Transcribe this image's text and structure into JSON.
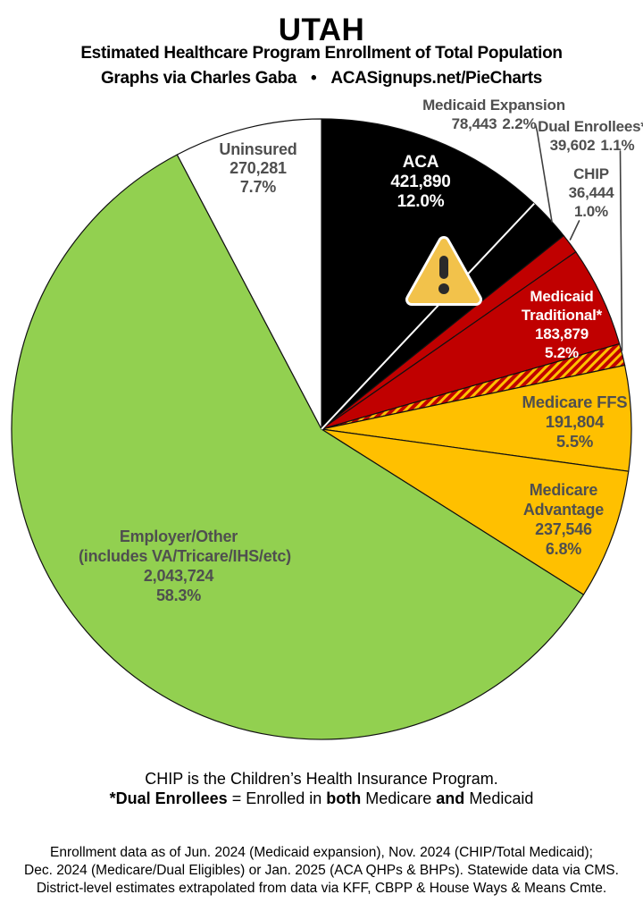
{
  "header": {
    "title": "UTAH",
    "subtitle": "Estimated Healthcare Program Enrollment of Total Population",
    "byline": {
      "left": "Graphs via Charles Gaba",
      "bullet": "•",
      "right": "ACASignups.net/PieCharts"
    }
  },
  "chart_data": {
    "type": "pie",
    "title": "UTAH",
    "subtitle": "Estimated Healthcare Program Enrollment of Total Population",
    "start_angle_deg": 0,
    "direction": "clockwise",
    "legend_position": "none",
    "slices": [
      {
        "id": "aca",
        "name": "ACA",
        "enrollment": 421890,
        "display_value": "421,890",
        "percent": 12.0,
        "percent_label": "12.0%",
        "color": "#000000",
        "label_color": "#ffffff"
      },
      {
        "id": "medicaid-expansion",
        "name": "Medicaid Expansion",
        "enrollment": 78443,
        "display_value": "78,443",
        "percent": 2.2,
        "percent_label": "2.2%",
        "color": "#000000",
        "label_color": "#4f4f4f"
      },
      {
        "id": "chip",
        "name": "CHIP",
        "enrollment": 36444,
        "display_value": "36,444",
        "percent": 1.0,
        "percent_label": "1.0%",
        "color": "#C00000",
        "label_color": "#4f4f4f"
      },
      {
        "id": "medicaid-traditional",
        "name": "Medicaid Traditional*",
        "enrollment": 183879,
        "display_value": "183,879",
        "percent": 5.2,
        "percent_label": "5.2%",
        "color": "#C00000",
        "label_color": "#ffffff"
      },
      {
        "id": "dual-enrollees",
        "name": "Dual Enrollees*",
        "enrollment": 39602,
        "display_value": "39,602",
        "percent": 1.1,
        "percent_label": "1.1%",
        "color": "#C00000",
        "pattern": "diagonal-stripes",
        "pattern_colors": [
          "#C00000",
          "#FFC000"
        ],
        "label_color": "#4f4f4f"
      },
      {
        "id": "medicare-ffs",
        "name": "Medicare FFS",
        "enrollment": 191804,
        "display_value": "191,804",
        "percent": 5.5,
        "percent_label": "5.5%",
        "color": "#FFC000",
        "label_color": "#4f4f4f"
      },
      {
        "id": "medicare-advantage",
        "name": "Medicare Advantage",
        "enrollment": 237546,
        "display_value": "237,546",
        "percent": 6.8,
        "percent_label": "6.8%",
        "color": "#FFC000",
        "label_color": "#4f4f4f"
      },
      {
        "id": "employer-other",
        "name": "Employer/Other",
        "sublabel": "(includes VA/Tricare/IHS/etc)",
        "enrollment": 2043724,
        "display_value": "2,043,724",
        "percent": 58.3,
        "percent_label": "58.3%",
        "color": "#92D050",
        "label_color": "#4f4f4f"
      },
      {
        "id": "uninsured",
        "name": "Uninsured",
        "enrollment": 270281,
        "display_value": "270,281",
        "percent": 7.7,
        "percent_label": "7.7%",
        "color": "#FFFFFF",
        "label_color": "#4f4f4f"
      }
    ],
    "annotations": {
      "warning_icon": "warning-triangle"
    }
  },
  "colors": {
    "aca_black": "#000000",
    "medicaid_red": "#C00000",
    "medicare_gold": "#FFC000",
    "employer_green": "#92D050",
    "uninsured_white": "#FFFFFF",
    "label_gray": "#4f4f4f",
    "warning_amber": "#F2C24B"
  },
  "footer": {
    "chip_note": "CHIP is the Children’s Health Insurance Program.",
    "dual_note": {
      "s1": "*Dual Enrollees",
      "s2": " = Enrolled in ",
      "s3": "both",
      "s4": " Medicare ",
      "s5": "and",
      "s6": " Medicaid"
    },
    "source_lines": {
      "l1": "Enrollment data as of Jun. 2024 (Medicaid expansion), Nov. 2024 (CHIP/Total Medicaid);",
      "l2": "Dec. 2024 (Medicare/Dual Eligibles) or Jan. 2025 (ACA QHPs & BHPs). Statewide data via CMS.",
      "l3": "District-level estimates extrapolated from data via KFF, CBPP & House Ways & Means Cmte."
    }
  }
}
